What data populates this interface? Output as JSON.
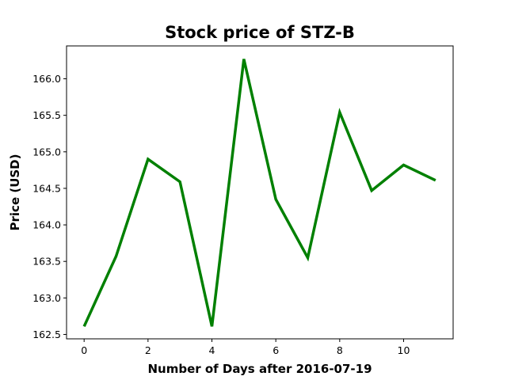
{
  "chart_data": {
    "type": "line",
    "title": "Stock price of STZ-B",
    "xlabel": "Number of Days after 2016-07-19",
    "ylabel": "Price (USD)",
    "x": [
      0,
      1,
      2,
      3,
      4,
      5,
      6,
      7,
      8,
      9,
      10,
      11
    ],
    "series": [
      {
        "values": [
          162.61,
          163.57,
          164.9,
          164.59,
          162.61,
          166.27,
          164.35,
          163.55,
          165.54,
          164.47,
          164.82,
          164.61
        ],
        "color": "#008000"
      }
    ],
    "xlim": [
      -0.55,
      11.55
    ],
    "ylim": [
      162.44,
      166.45
    ],
    "xticks": [
      0,
      2,
      4,
      6,
      8,
      10
    ],
    "xtick_labels": [
      "0",
      "2",
      "4",
      "6",
      "8",
      "10"
    ],
    "yticks": [
      162.5,
      163.0,
      163.5,
      164.0,
      164.5,
      165.0,
      165.5,
      166.0
    ],
    "ytick_labels": [
      "162.5",
      "163.0",
      "163.5",
      "164.0",
      "164.5",
      "165.0",
      "165.5",
      "166.0"
    ],
    "grid": false,
    "legend": "none"
  }
}
